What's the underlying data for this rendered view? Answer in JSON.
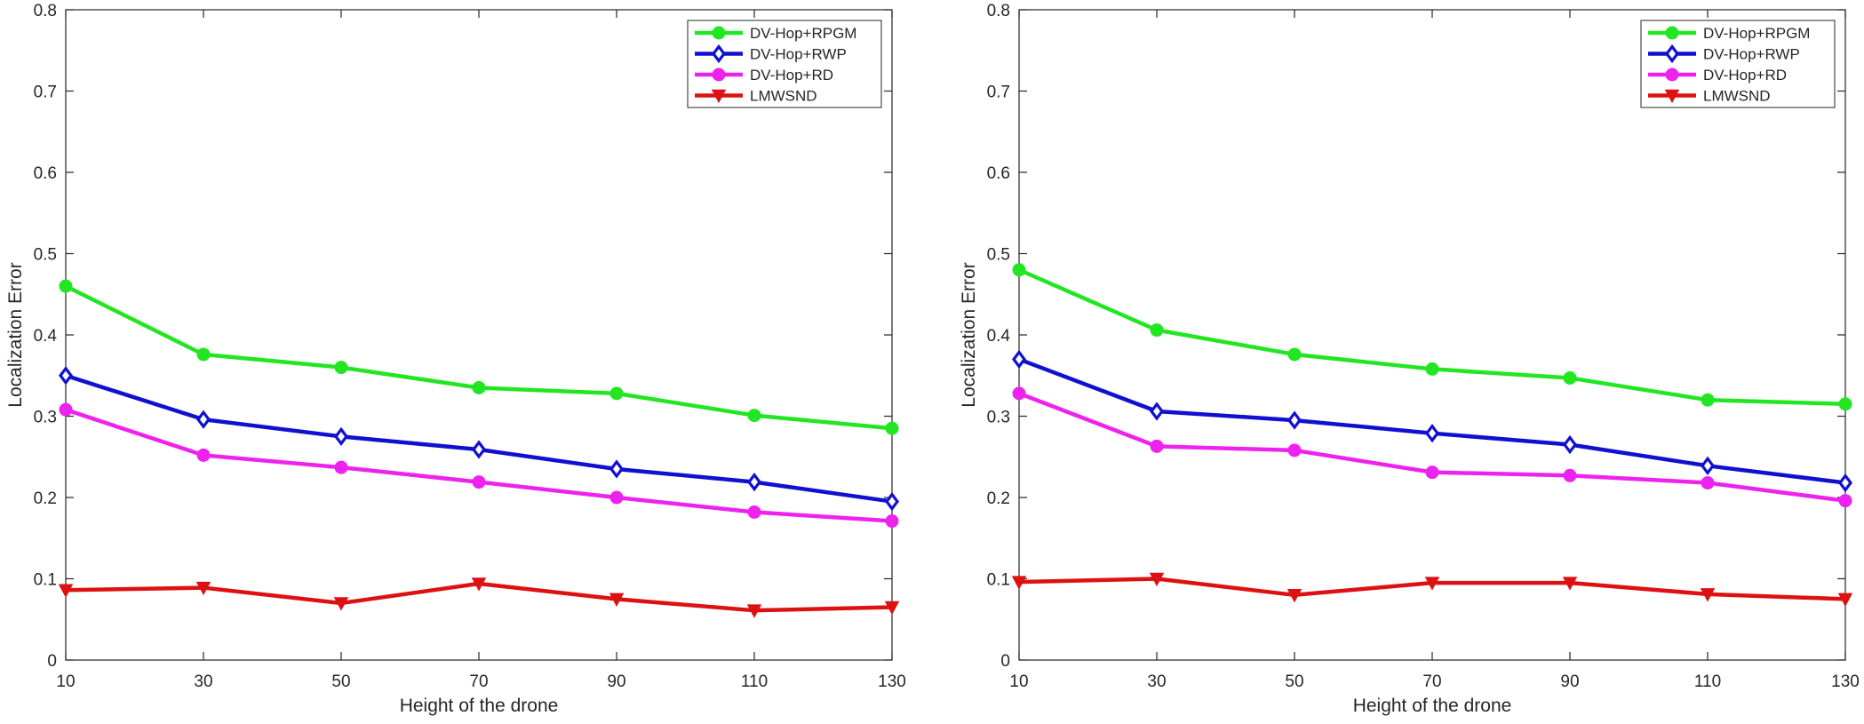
{
  "chart_data": [
    {
      "type": "line",
      "title": "",
      "xlabel": "Height of the drone",
      "ylabel": "Localization Error",
      "x": [
        10,
        30,
        50,
        70,
        90,
        110,
        130
      ],
      "xticks": [
        "10",
        "30",
        "50",
        "70",
        "90",
        "110",
        "130"
      ],
      "yticks": [
        "0",
        "0.1",
        "0.2",
        "0.3",
        "0.4",
        "0.5",
        "0.6",
        "0.7",
        "0.8"
      ],
      "xlim": [
        10,
        130
      ],
      "ylim": [
        0,
        0.8
      ],
      "legend_position": "top-right",
      "series": [
        {
          "name": "DV-Hop+RPGM",
          "color": "#22e622",
          "marker": "circle",
          "values": [
            0.46,
            0.376,
            0.36,
            0.335,
            0.328,
            0.301,
            0.285
          ]
        },
        {
          "name": "DV-Hop+RWP",
          "color": "#1010d0",
          "marker": "diamond",
          "values": [
            0.35,
            0.296,
            0.275,
            0.259,
            0.235,
            0.219,
            0.195
          ]
        },
        {
          "name": "DV-Hop+RD",
          "color": "#ee22ee",
          "marker": "circle",
          "values": [
            0.308,
            0.252,
            0.237,
            0.219,
            0.2,
            0.182,
            0.171
          ]
        },
        {
          "name": "LMWSND",
          "color": "#dd1111",
          "marker": "triangle-down",
          "values": [
            0.086,
            0.089,
            0.07,
            0.094,
            0.075,
            0.061,
            0.065
          ]
        }
      ]
    },
    {
      "type": "line",
      "title": "",
      "xlabel": "Height of the drone",
      "ylabel": "Localization Error",
      "x": [
        10,
        30,
        50,
        70,
        90,
        110,
        130
      ],
      "xticks": [
        "10",
        "30",
        "50",
        "70",
        "90",
        "110",
        "130"
      ],
      "yticks": [
        "0",
        "0.1",
        "0.2",
        "0.3",
        "0.4",
        "0.5",
        "0.6",
        "0.7",
        "0.8"
      ],
      "xlim": [
        10,
        130
      ],
      "ylim": [
        0,
        0.8
      ],
      "legend_position": "top-right",
      "series": [
        {
          "name": "DV-Hop+RPGM",
          "color": "#22e622",
          "marker": "circle",
          "values": [
            0.48,
            0.406,
            0.376,
            0.358,
            0.347,
            0.32,
            0.315
          ]
        },
        {
          "name": "DV-Hop+RWP",
          "color": "#1010d0",
          "marker": "diamond",
          "values": [
            0.37,
            0.306,
            0.295,
            0.279,
            0.265,
            0.239,
            0.218
          ]
        },
        {
          "name": "DV-Hop+RD",
          "color": "#ee22ee",
          "marker": "circle",
          "values": [
            0.328,
            0.263,
            0.258,
            0.231,
            0.227,
            0.218,
            0.196
          ]
        },
        {
          "name": "LMWSND",
          "color": "#dd1111",
          "marker": "triangle-down",
          "values": [
            0.096,
            0.1,
            0.08,
            0.095,
            0.095,
            0.081,
            0.075
          ]
        }
      ]
    }
  ]
}
